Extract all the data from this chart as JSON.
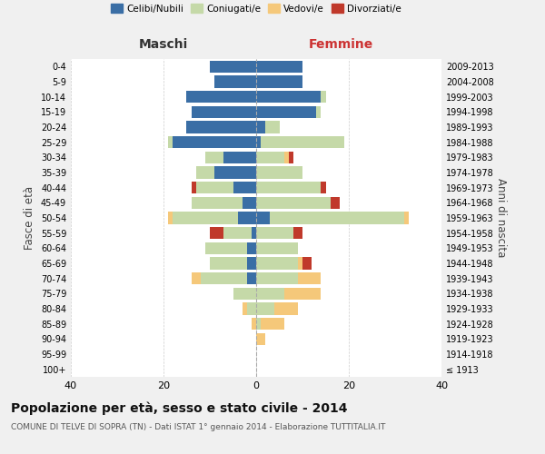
{
  "age_groups": [
    "100+",
    "95-99",
    "90-94",
    "85-89",
    "80-84",
    "75-79",
    "70-74",
    "65-69",
    "60-64",
    "55-59",
    "50-54",
    "45-49",
    "40-44",
    "35-39",
    "30-34",
    "25-29",
    "20-24",
    "15-19",
    "10-14",
    "5-9",
    "0-4"
  ],
  "birth_years": [
    "≤ 1913",
    "1914-1918",
    "1919-1923",
    "1924-1928",
    "1929-1933",
    "1934-1938",
    "1939-1943",
    "1944-1948",
    "1949-1953",
    "1954-1958",
    "1959-1963",
    "1964-1968",
    "1969-1973",
    "1974-1978",
    "1979-1983",
    "1984-1988",
    "1989-1993",
    "1994-1998",
    "1999-2003",
    "2004-2008",
    "2009-2013"
  ],
  "maschi": {
    "celibi": [
      0,
      0,
      0,
      0,
      0,
      0,
      2,
      2,
      2,
      1,
      4,
      3,
      5,
      9,
      7,
      18,
      15,
      14,
      15,
      9,
      10
    ],
    "coniugati": [
      0,
      0,
      0,
      0,
      2,
      5,
      10,
      8,
      9,
      6,
      14,
      11,
      8,
      4,
      4,
      1,
      0,
      0,
      0,
      0,
      0
    ],
    "vedovi": [
      0,
      0,
      0,
      1,
      1,
      0,
      2,
      0,
      0,
      0,
      1,
      0,
      0,
      0,
      0,
      0,
      0,
      0,
      0,
      0,
      0
    ],
    "divorziati": [
      0,
      0,
      0,
      0,
      0,
      0,
      0,
      0,
      0,
      3,
      0,
      0,
      1,
      0,
      0,
      0,
      0,
      0,
      0,
      0,
      0
    ]
  },
  "femmine": {
    "nubili": [
      0,
      0,
      0,
      0,
      0,
      0,
      0,
      0,
      0,
      0,
      3,
      0,
      0,
      0,
      0,
      1,
      2,
      13,
      14,
      10,
      10
    ],
    "coniugate": [
      0,
      0,
      0,
      1,
      4,
      6,
      9,
      9,
      9,
      8,
      29,
      16,
      14,
      10,
      6,
      18,
      3,
      1,
      1,
      0,
      0
    ],
    "vedove": [
      0,
      0,
      2,
      5,
      5,
      8,
      5,
      1,
      0,
      0,
      1,
      0,
      0,
      0,
      1,
      0,
      0,
      0,
      0,
      0,
      0
    ],
    "divorziate": [
      0,
      0,
      0,
      0,
      0,
      0,
      0,
      2,
      0,
      2,
      0,
      2,
      1,
      0,
      1,
      0,
      0,
      0,
      0,
      0,
      0
    ]
  },
  "colors": {
    "celibi_nubili": "#3a6ea5",
    "coniugati": "#c5d9a8",
    "vedovi": "#f5c87a",
    "divorziati": "#c0392b"
  },
  "title": "Popolazione per età, sesso e stato civile - 2014",
  "subtitle": "COMUNE DI TELVE DI SOPRA (TN) - Dati ISTAT 1° gennaio 2014 - Elaborazione TUTTITALIA.IT",
  "xlabel_left": "Maschi",
  "xlabel_right": "Femmine",
  "ylabel_left": "Fasce di età",
  "ylabel_right": "Anni di nascita",
  "xlim": 40,
  "legend_labels": [
    "Celibi/Nubili",
    "Coniugati/e",
    "Vedovi/e",
    "Divorziati/e"
  ],
  "background_color": "#f0f0f0",
  "plot_bg": "#ffffff",
  "grid_color": "#cccccc"
}
